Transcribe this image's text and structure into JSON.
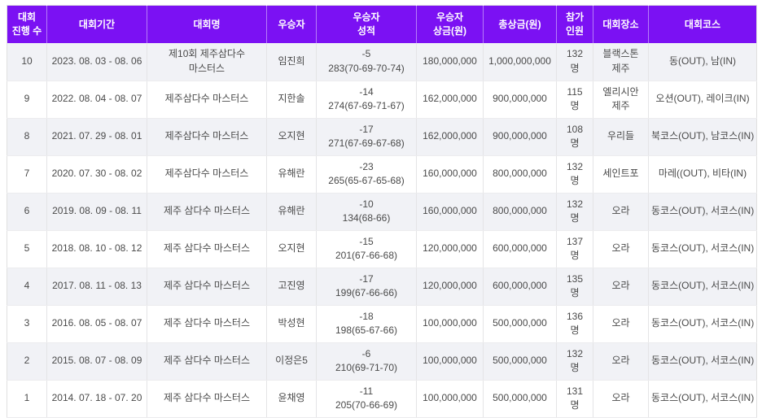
{
  "colors": {
    "header_bg": "#7b11f3",
    "header_text": "#ffffff",
    "row_alt_bg": "#f1f2f6",
    "body_text": "#4a4a4a",
    "border": "#e0e0e0"
  },
  "table": {
    "headers": [
      {
        "key": "no",
        "label": "대회\n진행 수"
      },
      {
        "key": "period",
        "label": "대회기간"
      },
      {
        "key": "name",
        "label": "대회명"
      },
      {
        "key": "winner",
        "label": "우승자"
      },
      {
        "key": "score",
        "label": "우승자\n성적"
      },
      {
        "key": "winner_prize",
        "label": "우승자\n상금(원)"
      },
      {
        "key": "total_prize",
        "label": "총상금(원)"
      },
      {
        "key": "participants",
        "label": "참가\n인원"
      },
      {
        "key": "venue",
        "label": "대회장소"
      },
      {
        "key": "course",
        "label": "대회코스"
      }
    ],
    "rows": [
      {
        "no": "10",
        "period": "2023. 08. 03 - 08. 06",
        "name": "제10회 제주삼다수 마스터스",
        "winner": "임진희",
        "score_par": "-5",
        "score_total": "283(70-69-70-74)",
        "winner_prize": "180,000,000",
        "total_prize": "1,000,000,000",
        "participants_count": "132",
        "participants_unit": "명",
        "venue": "블랙스톤 제주",
        "course": "동(OUT), 남(IN)"
      },
      {
        "no": "9",
        "period": "2022. 08. 04 - 08. 07",
        "name": "제주삼다수 마스터스",
        "winner": "지한솔",
        "score_par": "-14",
        "score_total": "274(67-69-71-67)",
        "winner_prize": "162,000,000",
        "total_prize": "900,000,000",
        "participants_count": "115",
        "participants_unit": "명",
        "venue": "엘리시안 제주",
        "course": "오션(OUT), 레이크(IN)"
      },
      {
        "no": "8",
        "period": "2021. 07. 29 - 08. 01",
        "name": "제주삼다수 마스터스",
        "winner": "오지현",
        "score_par": "-17",
        "score_total": "271(67-69-67-68)",
        "winner_prize": "162,000,000",
        "total_prize": "900,000,000",
        "participants_count": "108",
        "participants_unit": "명",
        "venue": "우리들",
        "course": "북코스(OUT), 남코스(IN)"
      },
      {
        "no": "7",
        "period": "2020. 07. 30 - 08. 02",
        "name": "제주삼다수 마스터스",
        "winner": "유해란",
        "score_par": "-23",
        "score_total": "265(65-67-65-68)",
        "winner_prize": "160,000,000",
        "total_prize": "800,000,000",
        "participants_count": "132",
        "participants_unit": "명",
        "venue": "세인트포",
        "course": "마레((OUT), 비타(IN)"
      },
      {
        "no": "6",
        "period": "2019. 08. 09 - 08. 11",
        "name": "제주 삼다수 마스터스",
        "winner": "유해란",
        "score_par": "-10",
        "score_total": "134(68-66)",
        "winner_prize": "160,000,000",
        "total_prize": "800,000,000",
        "participants_count": "132",
        "participants_unit": "명",
        "venue": "오라",
        "course": "동코스(OUT), 서코스(IN)"
      },
      {
        "no": "5",
        "period": "2018. 08. 10 - 08. 12",
        "name": "제주 삼다수 마스터스",
        "winner": "오지현",
        "score_par": "-15",
        "score_total": "201(67-66-68)",
        "winner_prize": "120,000,000",
        "total_prize": "600,000,000",
        "participants_count": "137",
        "participants_unit": "명",
        "venue": "오라",
        "course": "동코스(OUT), 서코스(IN)"
      },
      {
        "no": "4",
        "period": "2017. 08. 11 - 08. 13",
        "name": "제주 삼다수 마스터스",
        "winner": "고진영",
        "score_par": "-17",
        "score_total": "199(67-66-66)",
        "winner_prize": "120,000,000",
        "total_prize": "600,000,000",
        "participants_count": "135",
        "participants_unit": "명",
        "venue": "오라",
        "course": "동코스(OUT), 서코스(IN)"
      },
      {
        "no": "3",
        "period": "2016. 08. 05 - 08. 07",
        "name": "제주 삼다수 마스터스",
        "winner": "박성현",
        "score_par": "-18",
        "score_total": "198(65-67-66)",
        "winner_prize": "100,000,000",
        "total_prize": "500,000,000",
        "participants_count": "136",
        "participants_unit": "명",
        "venue": "오라",
        "course": "동코스(OUT), 서코스(IN)"
      },
      {
        "no": "2",
        "period": "2015. 08. 07 - 08. 09",
        "name": "제주 삼다수 마스터스",
        "winner": "이정은5",
        "score_par": "-6",
        "score_total": "210(69-71-70)",
        "winner_prize": "100,000,000",
        "total_prize": "500,000,000",
        "participants_count": "132",
        "participants_unit": "명",
        "venue": "오라",
        "course": "동코스(OUT), 서코스(IN)"
      },
      {
        "no": "1",
        "period": "2014. 07. 18 - 07. 20",
        "name": "제주 삼다수 마스터스",
        "winner": "윤채영",
        "score_par": "-11",
        "score_total": "205(70-66-69)",
        "winner_prize": "100,000,000",
        "total_prize": "500,000,000",
        "participants_count": "131",
        "participants_unit": "명",
        "venue": "오라",
        "course": "동코스(OUT), 서코스(IN)"
      }
    ]
  }
}
